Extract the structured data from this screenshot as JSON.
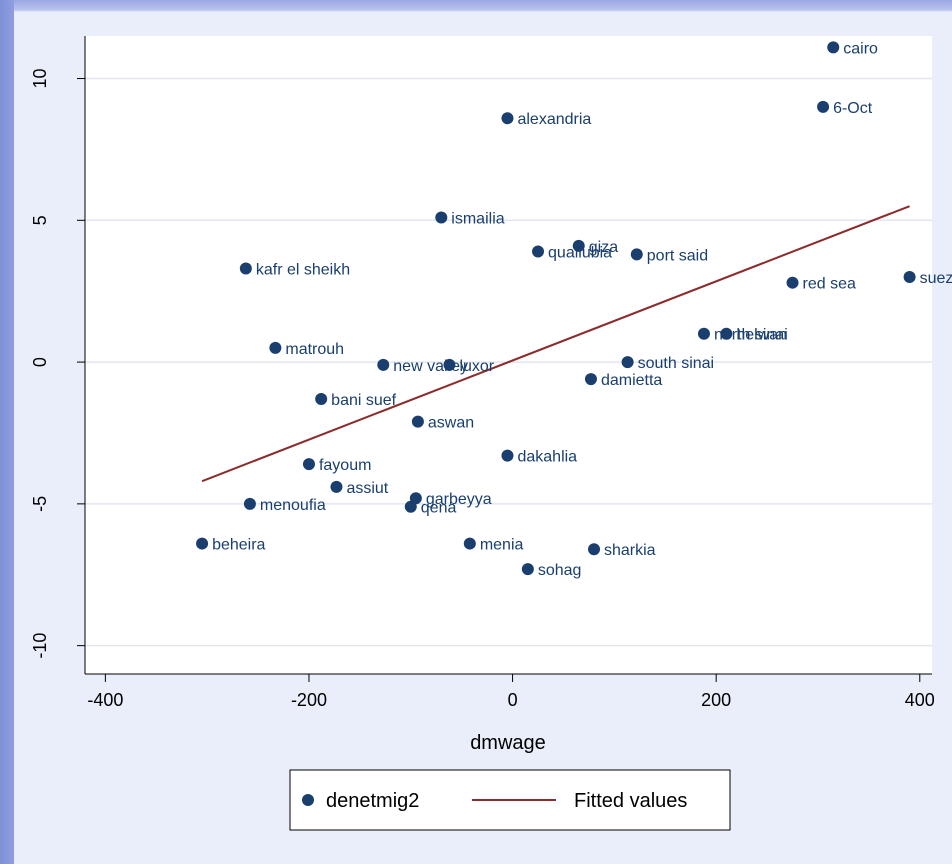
{
  "chart_data": {
    "type": "scatter",
    "xlabel": "dmwage",
    "ylabel": "",
    "xlim": [
      -420,
      412
    ],
    "ylim": [
      -11,
      11.5
    ],
    "xticks": [
      -400,
      -200,
      0,
      200,
      400
    ],
    "yticks": [
      -10,
      -5,
      0,
      5,
      10
    ],
    "grid": true,
    "legend_position": "bottom",
    "series": [
      {
        "name": "denetmig2",
        "points": [
          {
            "label": "cairo",
            "x": 315,
            "y": 11.1
          },
          {
            "label": "6-Oct",
            "x": 305,
            "y": 9.0
          },
          {
            "label": "alexandria",
            "x": -5,
            "y": 8.6
          },
          {
            "label": "ismailia",
            "x": -70,
            "y": 5.1
          },
          {
            "label": "kafr el sheikh",
            "x": -262,
            "y": 3.3
          },
          {
            "label": "qualiubia",
            "x": 25,
            "y": 3.9
          },
          {
            "label": "giza",
            "x": 65,
            "y": 4.1
          },
          {
            "label": "port said",
            "x": 122,
            "y": 3.8
          },
          {
            "label": "red sea",
            "x": 275,
            "y": 2.8
          },
          {
            "label": "suez",
            "x": 390,
            "y": 3.0
          },
          {
            "label": "north sinai",
            "x": 188,
            "y": 1.0
          },
          {
            "label": "helwan",
            "x": 210,
            "y": 1.0
          },
          {
            "label": "matrouh",
            "x": -233,
            "y": 0.5
          },
          {
            "label": "new valley",
            "x": -127,
            "y": -0.1
          },
          {
            "label": "luxor",
            "x": -62,
            "y": -0.1
          },
          {
            "label": "south sinai",
            "x": 113,
            "y": 0.0
          },
          {
            "label": "damietta",
            "x": 77,
            "y": -0.6
          },
          {
            "label": "bani suef",
            "x": -188,
            "y": -1.3
          },
          {
            "label": "aswan",
            "x": -93,
            "y": -2.1
          },
          {
            "label": "dakahlia",
            "x": -5,
            "y": -3.3
          },
          {
            "label": "fayoum",
            "x": -200,
            "y": -3.6
          },
          {
            "label": "assiut",
            "x": -173,
            "y": -4.4
          },
          {
            "label": "garbeyya",
            "x": -95,
            "y": -4.8
          },
          {
            "label": "qena",
            "x": -100,
            "y": -5.1
          },
          {
            "label": "menoufia",
            "x": -258,
            "y": -5.0
          },
          {
            "label": "beheira",
            "x": -305,
            "y": -6.4
          },
          {
            "label": "menia",
            "x": -42,
            "y": -6.4
          },
          {
            "label": "sharkia",
            "x": 80,
            "y": -6.6
          },
          {
            "label": "sohag",
            "x": 15,
            "y": -7.3
          }
        ]
      },
      {
        "name": "Fitted values",
        "type": "line",
        "points": [
          {
            "x": -305,
            "y": -4.2
          },
          {
            "x": 390,
            "y": 5.5
          }
        ]
      }
    ]
  },
  "colors": {
    "marker": "#1a3f6e",
    "fit_line": "#8b2b2b",
    "grid": "#e2e6f2"
  }
}
